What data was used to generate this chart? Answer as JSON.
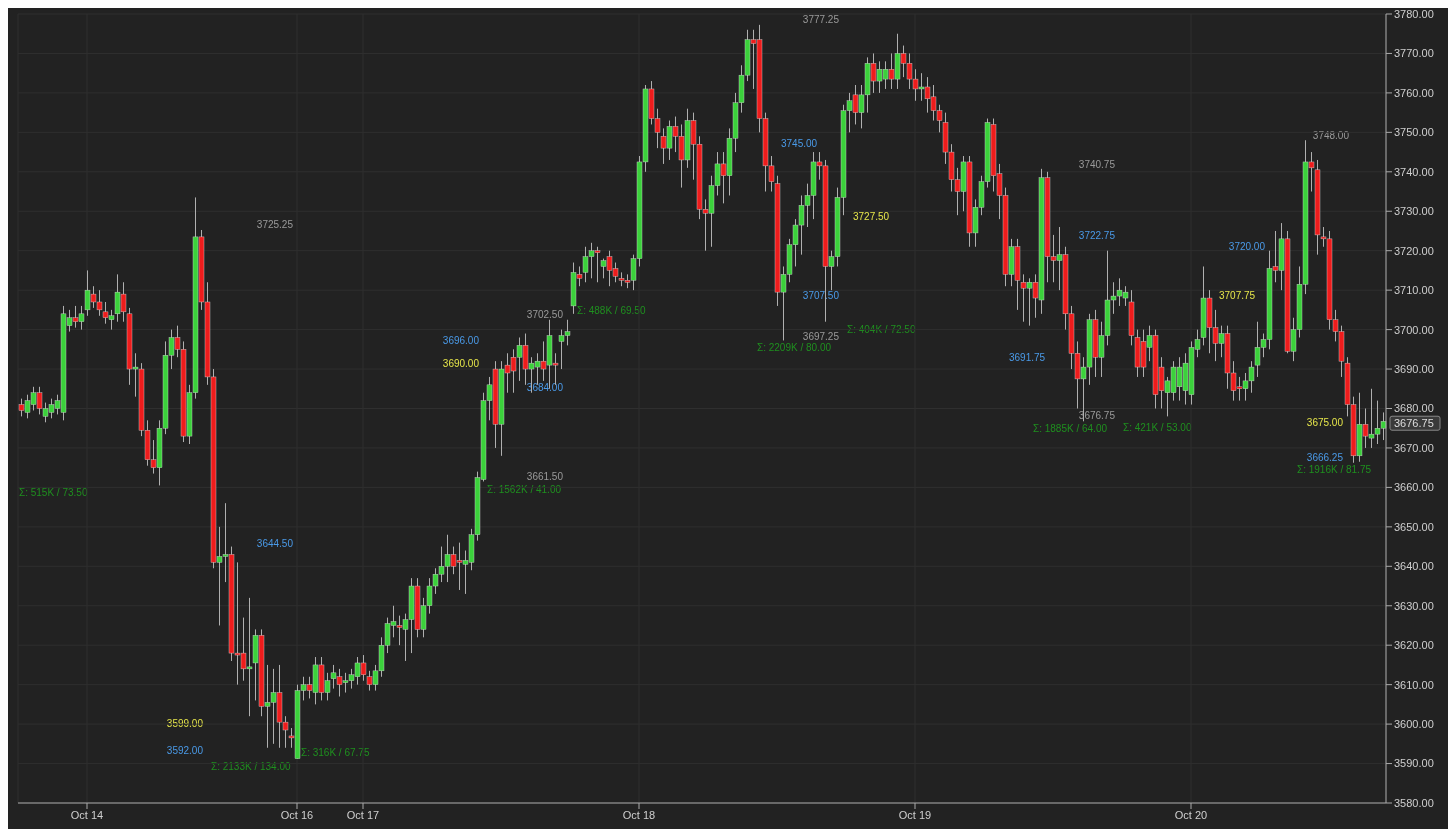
{
  "chart_data": {
    "type": "candlestick",
    "categories": [
      null,
      null,
      null,
      null,
      null,
      null,
      null,
      null,
      null,
      null,
      null,
      "Oct 14",
      null,
      null,
      null,
      null,
      null,
      null,
      null,
      null,
      null,
      null,
      null,
      null,
      null,
      null,
      null,
      null,
      null,
      null,
      null,
      null,
      null,
      null,
      null,
      null,
      null,
      null,
      null,
      null,
      null,
      null,
      null,
      null,
      null,
      null,
      "Oct 16",
      null,
      null,
      null,
      null,
      null,
      null,
      null,
      null,
      null,
      null,
      "Oct 17",
      null,
      null,
      null,
      null,
      null,
      null,
      null,
      null,
      null,
      null,
      null,
      null,
      null,
      null,
      null,
      null,
      null,
      null,
      null,
      null,
      null,
      null,
      null,
      null,
      null,
      null,
      null,
      null,
      null,
      null,
      null,
      null,
      null,
      null,
      null,
      null,
      null,
      null,
      null,
      null,
      null,
      null,
      null,
      null,
      null,
      "Oct 18",
      null,
      null,
      null,
      null,
      null,
      null,
      null,
      null,
      null,
      null,
      null,
      null,
      null,
      null,
      null,
      null,
      null,
      null,
      null,
      null,
      null,
      null,
      null,
      null,
      null,
      null,
      null,
      null,
      null,
      null,
      null,
      null,
      null,
      null,
      null,
      null,
      null,
      null,
      null,
      null,
      null,
      null,
      null,
      null,
      null,
      "Oct 19",
      null,
      null,
      null,
      null,
      null,
      null,
      null,
      null,
      null,
      null,
      null,
      null,
      null,
      null,
      null,
      null,
      null,
      null,
      null,
      null,
      null,
      null,
      null,
      null,
      null,
      null,
      null,
      null,
      null,
      null,
      null,
      null,
      null,
      null,
      null,
      null,
      null,
      null,
      null,
      null,
      null,
      null,
      null,
      null,
      null,
      "Oct 20",
      null,
      null,
      null,
      null,
      null,
      null,
      null,
      null,
      null,
      null,
      null,
      null,
      null,
      null,
      null,
      null,
      null,
      null,
      null,
      null,
      null,
      null,
      null,
      null,
      null,
      null,
      null,
      null,
      null,
      null,
      null,
      null
    ],
    "ohlc": [
      [
        3681,
        3682.5,
        3678,
        3679.5
      ],
      [
        3679,
        3683.5,
        3677.5,
        3682
      ],
      [
        3681,
        3685.5,
        3679.5,
        3684
      ],
      [
        3684,
        3685.5,
        3678.5,
        3680
      ],
      [
        3678,
        3681.5,
        3676.5,
        3680
      ],
      [
        3679,
        3682.5,
        3677.5,
        3681
      ],
      [
        3680,
        3683.5,
        3678.5,
        3682
      ],
      [
        3679,
        3706,
        3677,
        3704
      ],
      [
        3701,
        3705,
        3699.5,
        3703
      ],
      [
        3703,
        3706,
        3700.5,
        3702
      ],
      [
        3702,
        3706,
        3700,
        3704
      ],
      [
        3705,
        3715,
        3703.5,
        3710
      ],
      [
        3709,
        3711,
        3705.5,
        3707
      ],
      [
        3707,
        3710,
        3703.5,
        3705
      ],
      [
        3704.5,
        3707,
        3701.5,
        3703
      ],
      [
        3702.5,
        3705,
        3700,
        3703.5
      ],
      [
        3704,
        3714,
        3702,
        3709.5
      ],
      [
        3709,
        3712,
        3702,
        3704.5
      ],
      [
        3704,
        3705.5,
        3686,
        3690
      ],
      [
        3690,
        3694,
        3683,
        3690.5
      ],
      [
        3690,
        3691.5,
        3673,
        3674.5
      ],
      [
        3674.5,
        3677,
        3665.5,
        3667
      ],
      [
        3667,
        3672,
        3663.5,
        3665
      ],
      [
        3665,
        3677,
        3660.5,
        3675
      ],
      [
        3675,
        3697,
        3673.5,
        3693.5
      ],
      [
        3693.5,
        3700,
        3690,
        3698
      ],
      [
        3698,
        3701,
        3693,
        3695
      ],
      [
        3695,
        3697,
        3671.5,
        3673
      ],
      [
        3673,
        3686,
        3671,
        3684
      ],
      [
        3684,
        3733.5,
        3682.5,
        3723.5
      ],
      [
        3723.5,
        3725.25,
        3705,
        3707
      ],
      [
        3707,
        3712,
        3686,
        3688
      ],
      [
        3688,
        3690,
        3639.5,
        3641
      ],
      [
        3641,
        3650,
        3625,
        3642.5
      ],
      [
        3642.5,
        3656,
        3636,
        3643
      ],
      [
        3643,
        3645,
        3616,
        3618
      ],
      [
        3618,
        3641,
        3610,
        3617.5
      ],
      [
        3618,
        3627,
        3611,
        3614
      ],
      [
        3614,
        3632,
        3602,
        3614.5
      ],
      [
        3615.5,
        3624,
        3606,
        3622.5
      ],
      [
        3622.5,
        3624,
        3602,
        3604.5
      ],
      [
        3604.5,
        3615,
        3594,
        3605.5
      ],
      [
        3605.5,
        3614,
        3595,
        3608
      ],
      [
        3608,
        3615,
        3594,
        3600.5
      ],
      [
        3600.5,
        3602,
        3594,
        3598.5
      ],
      [
        3597,
        3599,
        3594,
        3596.5
      ],
      [
        3591.25,
        3610,
        3591.25,
        3608.5
      ],
      [
        3608.5,
        3612,
        3606,
        3610
      ],
      [
        3610,
        3612,
        3606.5,
        3608.5
      ],
      [
        3608,
        3617,
        3605,
        3615
      ],
      [
        3615,
        3617,
        3606,
        3608
      ],
      [
        3608,
        3613,
        3606,
        3611
      ],
      [
        3611.5,
        3615,
        3609,
        3613
      ],
      [
        3612,
        3614,
        3607,
        3610
      ],
      [
        3610.5,
        3613,
        3608,
        3611
      ],
      [
        3611,
        3614,
        3609,
        3612.5
      ],
      [
        3612,
        3617,
        3610,
        3615.5
      ],
      [
        3615.5,
        3617.5,
        3611,
        3612.5
      ],
      [
        3612,
        3613.5,
        3608.5,
        3610
      ],
      [
        3610,
        3615,
        3608.5,
        3613.5
      ],
      [
        3613.5,
        3622,
        3612,
        3620
      ],
      [
        3620,
        3627,
        3618,
        3625.5
      ],
      [
        3625,
        3630,
        3622,
        3626
      ],
      [
        3625,
        3627.5,
        3620,
        3624.5
      ],
      [
        3624,
        3628,
        3616,
        3626.5
      ],
      [
        3626.5,
        3637,
        3618,
        3635
      ],
      [
        3635,
        3637,
        3622,
        3624
      ],
      [
        3624,
        3632,
        3622,
        3630
      ],
      [
        3630,
        3637,
        3628,
        3635
      ],
      [
        3635,
        3639.5,
        3633,
        3638
      ],
      [
        3638,
        3645,
        3636,
        3640
      ],
      [
        3640,
        3648,
        3636,
        3643
      ],
      [
        3643,
        3645,
        3638,
        3640
      ],
      [
        3641.5,
        3646,
        3634,
        3641
      ],
      [
        3640.5,
        3644,
        3633,
        3641.5
      ],
      [
        3641,
        3649.5,
        3639,
        3648
      ],
      [
        3648,
        3664,
        3646.5,
        3662.5
      ],
      [
        3662,
        3684,
        3661.5,
        3682
      ],
      [
        3682,
        3688,
        3677,
        3686
      ],
      [
        3690,
        3692,
        3670,
        3676
      ],
      [
        3676,
        3692,
        3668,
        3690
      ],
      [
        3691,
        3694,
        3684,
        3689
      ],
      [
        3693,
        3695,
        3684,
        3689.5
      ],
      [
        3693,
        3698,
        3687,
        3696
      ],
      [
        3696,
        3699,
        3686,
        3690
      ],
      [
        3690,
        3693,
        3684,
        3691.5
      ],
      [
        3690.5,
        3694,
        3686,
        3692
      ],
      [
        3692,
        3697,
        3687,
        3690
      ],
      [
        3691,
        3702.5,
        3685,
        3698.5
      ],
      [
        3691.5,
        3694,
        3686,
        3691
      ],
      [
        3697,
        3700,
        3690,
        3698.5
      ],
      [
        3698.5,
        3702.5,
        3696,
        3699.5
      ],
      [
        3706,
        3717,
        3704,
        3714.5
      ],
      [
        3714,
        3716,
        3711,
        3713
      ],
      [
        3714.5,
        3721,
        3712,
        3718.5
      ],
      [
        3718.5,
        3722,
        3713,
        3720
      ],
      [
        3720,
        3721,
        3712,
        3719.5
      ],
      [
        3716,
        3718,
        3713,
        3717.5
      ],
      [
        3718.5,
        3720,
        3711,
        3715
      ],
      [
        3715.5,
        3717,
        3712,
        3713.5
      ],
      [
        3713,
        3714.5,
        3711,
        3712.5
      ],
      [
        3712.5,
        3714,
        3710.5,
        3712
      ],
      [
        3712.5,
        3719,
        3710,
        3718
      ],
      [
        3718,
        3744,
        3716,
        3742.5
      ],
      [
        3742.5,
        3762,
        3740,
        3761
      ],
      [
        3761,
        3763,
        3752,
        3753.5
      ],
      [
        3753.5,
        3756,
        3746,
        3750
      ],
      [
        3749,
        3751,
        3742,
        3746
      ],
      [
        3746,
        3753,
        3743,
        3751.5
      ],
      [
        3751.5,
        3754,
        3745,
        3749
      ],
      [
        3749,
        3752,
        3736,
        3743
      ],
      [
        3743,
        3756,
        3741,
        3753
      ],
      [
        3753,
        3755,
        3738,
        3747
      ],
      [
        3747,
        3749,
        3728,
        3730.5
      ],
      [
        3730.5,
        3733,
        3720,
        3729.5
      ],
      [
        3729.5,
        3739,
        3721,
        3736.5
      ],
      [
        3736.5,
        3745,
        3734,
        3742
      ],
      [
        3742,
        3745,
        3732,
        3739
      ],
      [
        3739,
        3751,
        3734,
        3748.5
      ],
      [
        3748.5,
        3760,
        3745,
        3757.5
      ],
      [
        3757.5,
        3767,
        3755,
        3764.5
      ],
      [
        3764.5,
        3776,
        3763,
        3773.5
      ],
      [
        3773.5,
        3776,
        3761,
        3772.5
      ],
      [
        3773.5,
        3777.25,
        3750,
        3753.5
      ],
      [
        3753.5,
        3755,
        3735,
        3741.5
      ],
      [
        3741.5,
        3744,
        3735,
        3737.5
      ],
      [
        3737,
        3739,
        3706,
        3709.5
      ],
      [
        3709.5,
        3716,
        3697.25,
        3714
      ],
      [
        3714,
        3723,
        3712,
        3721.5
      ],
      [
        3721.5,
        3728,
        3716,
        3726.5
      ],
      [
        3726.5,
        3734,
        3719,
        3731.5
      ],
      [
        3731.5,
        3737,
        3726,
        3734
      ],
      [
        3734,
        3745,
        3728,
        3742.5
      ],
      [
        3742.5,
        3745,
        3738,
        3741.5
      ],
      [
        3741.5,
        3743,
        3702,
        3716
      ],
      [
        3716,
        3720,
        3710,
        3718.5
      ],
      [
        3718.5,
        3736,
        3716,
        3733.5
      ],
      [
        3733.5,
        3757,
        3729,
        3755.5
      ],
      [
        3755.5,
        3760,
        3750,
        3758
      ],
      [
        3759.5,
        3762,
        3752,
        3755
      ],
      [
        3755,
        3762,
        3751,
        3759.5
      ],
      [
        3759.5,
        3769,
        3755,
        3767.5
      ],
      [
        3767.5,
        3770,
        3760,
        3763
      ],
      [
        3763,
        3768,
        3760,
        3766
      ],
      [
        3763.5,
        3768,
        3761,
        3766
      ],
      [
        3766,
        3770,
        3761,
        3763.5
      ],
      [
        3763.5,
        3775,
        3761,
        3770
      ],
      [
        3770,
        3772,
        3764,
        3767.5
      ],
      [
        3767.5,
        3770,
        3761,
        3763.5
      ],
      [
        3763.5,
        3766,
        3758,
        3761
      ],
      [
        3761,
        3765,
        3758,
        3761.5
      ],
      [
        3761.5,
        3764,
        3755,
        3758.5
      ],
      [
        3759,
        3762,
        3753,
        3755.5
      ],
      [
        3755.5,
        3757,
        3750,
        3753
      ],
      [
        3752.5,
        3755,
        3742,
        3745
      ],
      [
        3745,
        3747,
        3735,
        3738
      ],
      [
        3738,
        3741,
        3729,
        3735
      ],
      [
        3735,
        3744,
        3730,
        3742.5
      ],
      [
        3742.5,
        3744,
        3721,
        3724.5
      ],
      [
        3724.5,
        3733,
        3721,
        3731
      ],
      [
        3731,
        3739,
        3729,
        3737.5
      ],
      [
        3737.5,
        3753.5,
        3736,
        3752.5
      ],
      [
        3752,
        3753.5,
        3735,
        3739
      ],
      [
        3739.5,
        3742,
        3728,
        3734
      ],
      [
        3734,
        3736,
        3711,
        3714
      ],
      [
        3714,
        3723,
        3711,
        3721
      ],
      [
        3721,
        3723,
        3705,
        3712.5
      ],
      [
        3712,
        3714,
        3702,
        3710.5
      ],
      [
        3710.5,
        3713,
        3701,
        3712
      ],
      [
        3712,
        3714,
        3703,
        3708
      ],
      [
        3707.5,
        3740.75,
        3704,
        3738.5
      ],
      [
        3738.5,
        3740,
        3712,
        3718.5
      ],
      [
        3718.5,
        3724,
        3712,
        3717.5
      ],
      [
        3717.5,
        3726,
        3710,
        3719
      ],
      [
        3719,
        3721,
        3700,
        3704
      ],
      [
        3704,
        3706,
        3690,
        3694
      ],
      [
        3694,
        3697,
        3680,
        3687.5
      ],
      [
        3687.5,
        3693,
        3676.75,
        3690.5
      ],
      [
        3690.5,
        3704,
        3686,
        3702.5
      ],
      [
        3702.5,
        3705,
        3688,
        3693
      ],
      [
        3693,
        3702,
        3688,
        3698.5
      ],
      [
        3698.5,
        3720,
        3696,
        3707.5
      ],
      [
        3707.5,
        3712,
        3704,
        3708.5
      ],
      [
        3708.5,
        3713,
        3706,
        3710
      ],
      [
        3708,
        3711,
        3706,
        3709.5
      ],
      [
        3707,
        3710,
        3696,
        3698.5
      ],
      [
        3698,
        3700,
        3688,
        3690.5
      ],
      [
        3697,
        3700,
        3688,
        3690.5
      ],
      [
        3695.5,
        3701,
        3692,
        3698.5
      ],
      [
        3698.5,
        3700,
        3680,
        3683.5
      ],
      [
        3690.5,
        3693,
        3680,
        3684.5
      ],
      [
        3684,
        3688,
        3678,
        3687
      ],
      [
        3684,
        3692,
        3682,
        3690.5
      ],
      [
        3685.5,
        3693,
        3682,
        3690.5
      ],
      [
        3684.5,
        3694,
        3681,
        3691.5
      ],
      [
        3683.5,
        3697,
        3681,
        3695.5
      ],
      [
        3695,
        3700,
        3693,
        3697.5
      ],
      [
        3698,
        3716,
        3696,
        3708
      ],
      [
        3708,
        3710,
        3694,
        3700.5
      ],
      [
        3700.5,
        3705,
        3692,
        3696.5
      ],
      [
        3696.5,
        3701,
        3693,
        3699
      ],
      [
        3699,
        3701,
        3685,
        3689
      ],
      [
        3689,
        3692,
        3682,
        3684.5
      ],
      [
        3685.5,
        3688,
        3682,
        3685
      ],
      [
        3685,
        3689,
        3682,
        3687
      ],
      [
        3687,
        3692,
        3684,
        3690.5
      ],
      [
        3691,
        3702,
        3688,
        3695.5
      ],
      [
        3695.5,
        3699,
        3693,
        3697.5
      ],
      [
        3697.5,
        3720,
        3695,
        3715.5
      ],
      [
        3716,
        3725,
        3712,
        3715
      ],
      [
        3715,
        3727,
        3710,
        3723
      ],
      [
        3723,
        3725,
        3694,
        3694.5
      ],
      [
        3694.5,
        3703,
        3692,
        3700
      ],
      [
        3700,
        3716,
        3698,
        3711.5
      ],
      [
        3711.5,
        3748,
        3709,
        3742.5
      ],
      [
        3742.5,
        3745,
        3735,
        3741
      ],
      [
        3740.5,
        3743,
        3719,
        3724
      ],
      [
        3723.5,
        3726,
        3721,
        3723
      ],
      [
        3723,
        3725,
        3700,
        3702.5
      ],
      [
        3702.5,
        3705,
        3697,
        3699.5
      ],
      [
        3699.5,
        3701,
        3688,
        3692
      ],
      [
        3691.5,
        3693,
        3678,
        3681
      ],
      [
        3681,
        3683,
        3666.25,
        3668
      ],
      [
        3668,
        3684,
        3666.5,
        3676
      ],
      [
        3676,
        3680,
        3670,
        3673
      ],
      [
        3672.5,
        3685,
        3670,
        3673.5
      ],
      [
        3673.5,
        3682,
        3671,
        3675
      ],
      [
        3675,
        3679,
        3672,
        3676.75
      ]
    ],
    "colors": [
      "#ee1c1c",
      "#3bd13b",
      "#3bd13b",
      "#ee1c1c",
      "#3bd13b",
      "#3bd13b",
      "#3bd13b",
      "#3bd13b",
      "#3bd13b",
      "#ee1c1c",
      "#3bd13b",
      "#3bd13b",
      "#ee1c1c",
      "#ee1c1c",
      "#ee1c1c",
      "#3bd13b",
      "#3bd13b",
      "#ee1c1c",
      "#ee1c1c",
      "#3bd13b",
      "#ee1c1c",
      "#ee1c1c",
      "#ee1c1c",
      "#3bd13b",
      "#3bd13b",
      "#3bd13b",
      "#ee1c1c",
      "#ee1c1c",
      "#3bd13b",
      "#3bd13b",
      "#ee1c1c",
      "#ee1c1c",
      "#ee1c1c",
      "#3bd13b",
      "#3bd13b",
      "#ee1c1c",
      "#ee1c1c",
      "#ee1c1c",
      "#3bd13b",
      "#3bd13b",
      "#ee1c1c",
      "#3bd13b",
      "#3bd13b",
      "#ee1c1c",
      "#ee1c1c",
      "#ee1c1c",
      "#3bd13b",
      "#3bd13b",
      "#ee1c1c",
      "#3bd13b",
      "#ee1c1c",
      "#3bd13b",
      "#3bd13b",
      "#ee1c1c",
      "#3bd13b",
      "#3bd13b",
      "#3bd13b",
      "#ee1c1c",
      "#ee1c1c",
      "#3bd13b",
      "#3bd13b",
      "#3bd13b",
      "#3bd13b",
      "#ee1c1c",
      "#3bd13b",
      "#3bd13b",
      "#ee1c1c",
      "#3bd13b",
      "#3bd13b",
      "#3bd13b",
      "#3bd13b",
      "#3bd13b",
      "#ee1c1c",
      "#ee1c1c",
      "#3bd13b",
      "#3bd13b",
      "#3bd13b",
      "#3bd13b",
      "#3bd13b",
      "#ee1c1c",
      "#3bd13b",
      "#ee1c1c",
      "#ee1c1c",
      "#3bd13b",
      "#ee1c1c",
      "#3bd13b",
      "#3bd13b",
      "#ee1c1c",
      "#3bd13b",
      "#ee1c1c",
      "#3bd13b",
      "#3bd13b",
      "#3bd13b",
      "#ee1c1c",
      "#3bd13b",
      "#3bd13b",
      "#ee1c1c",
      "#3bd13b",
      "#ee1c1c",
      "#ee1c1c",
      "#ee1c1c",
      "#ee1c1c",
      "#3bd13b",
      "#3bd13b",
      "#3bd13b",
      "#ee1c1c",
      "#ee1c1c",
      "#ee1c1c",
      "#3bd13b",
      "#ee1c1c",
      "#ee1c1c",
      "#3bd13b",
      "#ee1c1c",
      "#ee1c1c",
      "#ee1c1c",
      "#3bd13b",
      "#3bd13b",
      "#ee1c1c",
      "#3bd13b",
      "#3bd13b",
      "#3bd13b",
      "#3bd13b",
      "#ee1c1c",
      "#ee1c1c",
      "#ee1c1c",
      "#ee1c1c",
      "#ee1c1c",
      "#3bd13b",
      "#3bd13b",
      "#3bd13b",
      "#3bd13b",
      "#3bd13b",
      "#3bd13b",
      "#ee1c1c",
      "#ee1c1c",
      "#3bd13b",
      "#3bd13b",
      "#3bd13b",
      "#3bd13b",
      "#ee1c1c",
      "#3bd13b",
      "#3bd13b",
      "#ee1c1c",
      "#3bd13b",
      "#3bd13b",
      "#ee1c1c",
      "#3bd13b",
      "#ee1c1c",
      "#ee1c1c",
      "#ee1c1c",
      "#3bd13b",
      "#ee1c1c",
      "#ee1c1c",
      "#ee1c1c",
      "#ee1c1c",
      "#ee1c1c",
      "#ee1c1c",
      "#3bd13b",
      "#ee1c1c",
      "#3bd13b",
      "#3bd13b",
      "#3bd13b",
      "#ee1c1c",
      "#ee1c1c",
      "#ee1c1c",
      "#3bd13b",
      "#ee1c1c",
      "#ee1c1c",
      "#3bd13b",
      "#ee1c1c",
      "#3bd13b",
      "#ee1c1c",
      "#ee1c1c",
      "#3bd13b",
      "#ee1c1c",
      "#ee1c1c",
      "#ee1c1c",
      "#3bd13b",
      "#3bd13b",
      "#ee1c1c",
      "#3bd13b",
      "#3bd13b",
      "#3bd13b",
      "#3bd13b",
      "#3bd13b",
      "#ee1c1c",
      "#ee1c1c",
      "#ee1c1c",
      "#3bd13b",
      "#ee1c1c",
      "#ee1c1c",
      "#3bd13b",
      "#3bd13b",
      "#3bd13b",
      "#3bd13b",
      "#3bd13b",
      "#3bd13b",
      "#3bd13b",
      "#ee1c1c",
      "#ee1c1c",
      "#3bd13b",
      "#ee1c1c",
      "#ee1c1c",
      "#ee1c1c",
      "#3bd13b",
      "#3bd13b",
      "#3bd13b",
      "#3bd13b",
      "#3bd13b",
      "#ee1c1c",
      "#3bd13b",
      "#ee1c1c",
      "#3bd13b",
      "#3bd13b",
      "#3bd13b",
      "#ee1c1c",
      "#ee1c1c",
      "#ee1c1c",
      "#ee1c1c",
      "#ee1c1c",
      "#ee1c1c",
      "#ee1c1c",
      "#ee1c1c",
      "#3bd13b",
      "#ee1c1c",
      "#3bd13b",
      "#3bd13b",
      "#3bd13b"
    ],
    "ylim": [
      3580,
      3780
    ],
    "yticks": [
      {
        "value": 3580,
        "label": "3580.00"
      },
      {
        "value": 3590,
        "label": "3590.00"
      },
      {
        "value": 3600,
        "label": "3600.00"
      },
      {
        "value": 3610,
        "label": "3610.00"
      },
      {
        "value": 3620,
        "label": "3620.00"
      },
      {
        "value": 3630,
        "label": "3630.00"
      },
      {
        "value": 3640,
        "label": "3640.00"
      },
      {
        "value": 3650,
        "label": "3650.00"
      },
      {
        "value": 3660,
        "label": "3660.00"
      },
      {
        "value": 3670,
        "label": "3670.00"
      },
      {
        "value": 3680,
        "label": "3680.00"
      },
      {
        "value": 3690,
        "label": "3690.00"
      },
      {
        "value": 3700,
        "label": "3700.00"
      },
      {
        "value": 3710,
        "label": "3710.00"
      },
      {
        "value": 3720,
        "label": "3720.00"
      },
      {
        "value": 3730,
        "label": "3730.00"
      },
      {
        "value": 3740,
        "label": "3740.00"
      },
      {
        "value": 3750,
        "label": "3750.00"
      },
      {
        "value": 3760,
        "label": "3760.00"
      },
      {
        "value": 3770,
        "label": "3770.00"
      },
      {
        "value": 3780,
        "label": "3780.00"
      }
    ],
    "grid": true,
    "annotations": [
      "3725.25",
      "3644.50",
      "3599.00",
      "3592.00",
      "3702.50",
      "3696.00",
      "3690.00",
      "3684.00",
      "3661.50",
      "3777.25",
      "3745.00",
      "3727.50",
      "3707.50",
      "3697.25",
      "3740.75",
      "3722.75",
      "3707.75",
      "3691.75",
      "3676.75",
      "3748.00",
      "3720.00",
      "3675.00",
      "3666.25",
      "Σ: 515K / 73.50",
      "Σ: 2133K / 134.00",
      "Σ: 316K / 67.75",
      "Σ: 1562K / 41.00",
      "Σ: 488K / 69.50",
      "Σ: 2209K / 80.00",
      "Σ: 404K / 72.50",
      "Σ: 1885K / 64.00",
      "Σ: 421K / 53.00",
      "Σ: 1916K / 81.75",
      "3676.75"
    ]
  }
}
